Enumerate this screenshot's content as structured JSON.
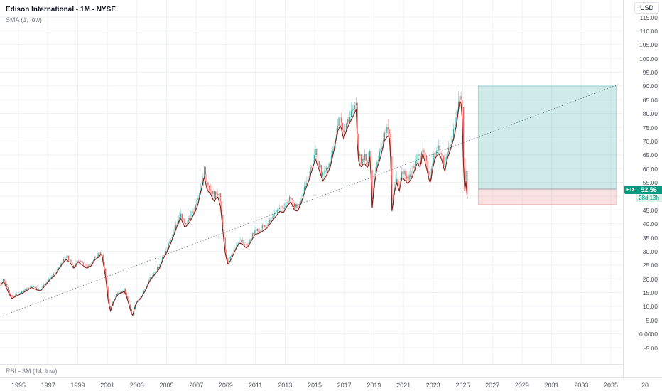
{
  "header": {
    "symbol_title": "Edison International - 1M - NYSE",
    "indicator_label": "SMA (1, low)"
  },
  "rsi_pane": {
    "label": "RSI - 3M (14, low)"
  },
  "price_axis": {
    "currency": "USD",
    "labels": [
      "115.00",
      "110.00",
      "105.00",
      "100.00",
      "95.00",
      "90.00",
      "85.00",
      "80.00",
      "75.00",
      "70.00",
      "65.00",
      "60.00",
      "55.00",
      "45.00",
      "40.00",
      "35.00",
      "30.00",
      "25.00",
      "20.00",
      "15.00",
      "10.00",
      "5.00",
      "0.0000",
      "-5.00"
    ]
  },
  "time_axis": {
    "labels": [
      "1995",
      "1997",
      "1999",
      "2001",
      "2003",
      "2005",
      "2007",
      "2009",
      "2011",
      "2013",
      "2015",
      "2017",
      "2019",
      "2021",
      "2023",
      "2025",
      "2027",
      "2029",
      "2031",
      "2033",
      "2035"
    ],
    "partial_label": "20"
  },
  "price_line": {
    "ticker": "EIX",
    "price": "52.56",
    "countdown": "28d 13h",
    "color": "#089981"
  },
  "chart_data": {
    "type": "candlestick",
    "title": "Edison International (EIX) - 1M - NYSE",
    "ylabel": "USD",
    "ylim": [
      -7,
      117
    ],
    "x_years": [
      1993.75,
      2036.6
    ],
    "grid": true,
    "current_price": 52.56,
    "series": [
      {
        "name": "EIX monthly low / SMA(1, low)",
        "points_year_price": [
          [
            1993.8,
            17.5
          ],
          [
            1994.0,
            19.2
          ],
          [
            1994.25,
            15.8
          ],
          [
            1994.55,
            12.8
          ],
          [
            1994.8,
            13.6
          ],
          [
            1995.1,
            14.3
          ],
          [
            1995.5,
            15.5
          ],
          [
            1995.9,
            16.8
          ],
          [
            1996.2,
            16.0
          ],
          [
            1996.5,
            15.6
          ],
          [
            1996.8,
            17.5
          ],
          [
            1997.1,
            19.5
          ],
          [
            1997.5,
            21.5
          ],
          [
            1997.9,
            25.0
          ],
          [
            1998.2,
            27.0
          ],
          [
            1998.5,
            25.8
          ],
          [
            1998.75,
            23.6
          ],
          [
            1999.0,
            26.2
          ],
          [
            1999.3,
            25.0
          ],
          [
            1999.6,
            23.8
          ],
          [
            1999.9,
            24.6
          ],
          [
            2000.15,
            26.8
          ],
          [
            2000.45,
            28.0
          ],
          [
            2000.6,
            29.3
          ],
          [
            2000.75,
            25.0
          ],
          [
            2000.9,
            20.0
          ],
          [
            2001.05,
            12.5
          ],
          [
            2001.2,
            8.0
          ],
          [
            2001.35,
            10.8
          ],
          [
            2001.55,
            12.8
          ],
          [
            2001.75,
            14.5
          ],
          [
            2001.95,
            14.8
          ],
          [
            2002.15,
            15.5
          ],
          [
            2002.35,
            12.8
          ],
          [
            2002.55,
            8.8
          ],
          [
            2002.7,
            6.3
          ],
          [
            2002.85,
            9.8
          ],
          [
            2003.0,
            11.5
          ],
          [
            2003.3,
            13.2
          ],
          [
            2003.6,
            16.0
          ],
          [
            2003.9,
            19.6
          ],
          [
            2004.2,
            21.5
          ],
          [
            2004.5,
            23.5
          ],
          [
            2004.8,
            27.5
          ],
          [
            2005.1,
            30.5
          ],
          [
            2005.4,
            34.5
          ],
          [
            2005.7,
            39.0
          ],
          [
            2005.95,
            42.0
          ],
          [
            2006.25,
            38.5
          ],
          [
            2006.55,
            40.5
          ],
          [
            2006.85,
            43.5
          ],
          [
            2007.1,
            46.5
          ],
          [
            2007.35,
            52.5
          ],
          [
            2007.55,
            57.0
          ],
          [
            2007.75,
            52.0
          ],
          [
            2007.95,
            51.0
          ],
          [
            2008.2,
            48.0
          ],
          [
            2008.45,
            50.0
          ],
          [
            2008.65,
            46.0
          ],
          [
            2008.8,
            37.5
          ],
          [
            2008.95,
            29.5
          ],
          [
            2009.15,
            25.0
          ],
          [
            2009.4,
            27.5
          ],
          [
            2009.65,
            30.5
          ],
          [
            2009.9,
            33.0
          ],
          [
            2010.15,
            32.5
          ],
          [
            2010.4,
            31.0
          ],
          [
            2010.7,
            33.5
          ],
          [
            2010.95,
            36.0
          ],
          [
            2011.25,
            36.5
          ],
          [
            2011.55,
            37.5
          ],
          [
            2011.8,
            38.5
          ],
          [
            2012.05,
            40.5
          ],
          [
            2012.35,
            42.5
          ],
          [
            2012.65,
            44.5
          ],
          [
            2012.9,
            44.0
          ],
          [
            2013.15,
            46.5
          ],
          [
            2013.4,
            48.0
          ],
          [
            2013.6,
            45.0
          ],
          [
            2013.85,
            44.5
          ],
          [
            2014.1,
            47.5
          ],
          [
            2014.35,
            52.0
          ],
          [
            2014.6,
            55.5
          ],
          [
            2014.85,
            60.0
          ],
          [
            2015.05,
            63.5
          ],
          [
            2015.3,
            59.5
          ],
          [
            2015.55,
            55.5
          ],
          [
            2015.8,
            57.5
          ],
          [
            2016.05,
            60.5
          ],
          [
            2016.3,
            66.5
          ],
          [
            2016.55,
            73.5
          ],
          [
            2016.75,
            76.0
          ],
          [
            2016.95,
            70.5
          ],
          [
            2017.15,
            74.0
          ],
          [
            2017.4,
            77.0
          ],
          [
            2017.65,
            79.5
          ],
          [
            2017.8,
            81.5
          ],
          [
            2017.92,
            63.5
          ],
          [
            2018.1,
            60.5
          ],
          [
            2018.35,
            62.0
          ],
          [
            2018.6,
            60.0
          ],
          [
            2018.75,
            65.5
          ],
          [
            2018.88,
            45.5
          ],
          [
            2019.0,
            53.0
          ],
          [
            2019.2,
            60.0
          ],
          [
            2019.45,
            64.0
          ],
          [
            2019.7,
            70.0
          ],
          [
            2019.95,
            72.0
          ],
          [
            2020.1,
            70.5
          ],
          [
            2020.22,
            43.8
          ],
          [
            2020.4,
            52.0
          ],
          [
            2020.55,
            55.0
          ],
          [
            2020.7,
            51.5
          ],
          [
            2020.9,
            57.0
          ],
          [
            2021.05,
            56.0
          ],
          [
            2021.3,
            54.5
          ],
          [
            2021.55,
            56.5
          ],
          [
            2021.8,
            60.0
          ],
          [
            2021.95,
            62.5
          ],
          [
            2022.1,
            60.0
          ],
          [
            2022.3,
            65.5
          ],
          [
            2022.5,
            61.5
          ],
          [
            2022.7,
            56.5
          ],
          [
            2022.82,
            54.5
          ],
          [
            2022.95,
            59.5
          ],
          [
            2023.15,
            64.0
          ],
          [
            2023.4,
            65.5
          ],
          [
            2023.6,
            63.0
          ],
          [
            2023.78,
            58.5
          ],
          [
            2023.95,
            63.5
          ],
          [
            2024.15,
            66.5
          ],
          [
            2024.4,
            71.0
          ],
          [
            2024.6,
            76.5
          ],
          [
            2024.75,
            83.0
          ],
          [
            2024.85,
            86.0
          ],
          [
            2024.95,
            79.0
          ],
          [
            2025.02,
            73.5
          ],
          [
            2025.08,
            49.5
          ],
          [
            2025.15,
            52.5
          ],
          [
            2025.22,
            55.5
          ],
          [
            2025.28,
            47.8
          ],
          [
            2025.33,
            51.0
          ]
        ]
      }
    ],
    "trendline": {
      "style": "dotted",
      "from": [
        1993.8,
        6.3
      ],
      "to": [
        2035.5,
        90.5
      ]
    },
    "long_position": {
      "x_from": 2026.05,
      "x_to": 2035.35,
      "entry": 52.56,
      "target": 90.0,
      "stop": 47.0
    },
    "colors": {
      "up": "#26a69a",
      "down": "#ef5350",
      "sma": "#8c1d18",
      "trendline": "#555a64",
      "entry_line": "#9598a1",
      "grid": "#eef1f6"
    }
  }
}
